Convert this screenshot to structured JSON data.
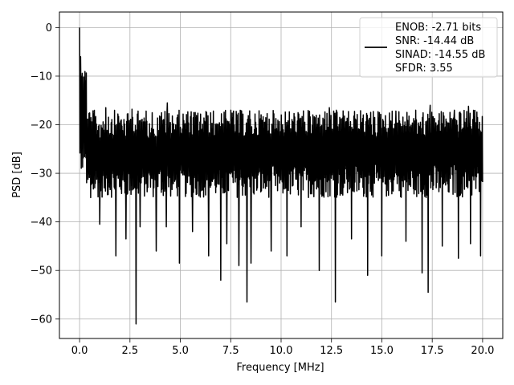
{
  "chart_data": {
    "type": "line",
    "xlabel": "Frequency [MHz]",
    "ylabel": "PSD [dB]",
    "xlim": [
      -1.0,
      21.0
    ],
    "ylim": [
      -64.0,
      3.2
    ],
    "x_ticks": [
      0.0,
      2.5,
      5.0,
      7.5,
      10.0,
      12.5,
      15.0,
      17.5,
      20.0
    ],
    "x_tick_labels": [
      "0.0",
      "2.5",
      "5.0",
      "7.5",
      "10.0",
      "12.5",
      "15.0",
      "17.5",
      "20.0"
    ],
    "y_ticks": [
      0,
      -10,
      -20,
      -30,
      -40,
      -50,
      -60
    ],
    "y_tick_labels": [
      "0",
      "−10",
      "−20",
      "−30",
      "−40",
      "−50",
      "−60"
    ],
    "grid": true,
    "legend_position": "top-right",
    "legend_entries": [
      "ENOB: -2.71 bits",
      "SNR: -14.44 dB",
      "SINAD: -14.55 dB",
      "SFDR: 3.55"
    ],
    "series": [
      {
        "color": "#000000",
        "x_start": 0.0,
        "x_end": 20.0,
        "points": 1200,
        "initial_peak_db": 0.0,
        "band_high_db": -17.0,
        "band_low_db": -35.0,
        "deep_dips": [
          {
            "x": 0.55,
            "y": -35.0
          },
          {
            "x": 1.0,
            "y": -40.5
          },
          {
            "x": 1.8,
            "y": -47.0
          },
          {
            "x": 2.3,
            "y": -43.5
          },
          {
            "x": 2.8,
            "y": -61.0
          },
          {
            "x": 3.0,
            "y": -41.0
          },
          {
            "x": 3.8,
            "y": -46.0
          },
          {
            "x": 4.3,
            "y": -41.0
          },
          {
            "x": 4.95,
            "y": -48.5
          },
          {
            "x": 5.6,
            "y": -42.0
          },
          {
            "x": 6.4,
            "y": -47.0
          },
          {
            "x": 7.0,
            "y": -52.0
          },
          {
            "x": 7.3,
            "y": -44.5
          },
          {
            "x": 7.9,
            "y": -49.0
          },
          {
            "x": 8.3,
            "y": -56.5
          },
          {
            "x": 8.5,
            "y": -48.5
          },
          {
            "x": 9.5,
            "y": -46.0
          },
          {
            "x": 10.3,
            "y": -47.0
          },
          {
            "x": 11.0,
            "y": -41.0
          },
          {
            "x": 11.9,
            "y": -50.0
          },
          {
            "x": 12.7,
            "y": -56.5
          },
          {
            "x": 13.5,
            "y": -43.5
          },
          {
            "x": 14.3,
            "y": -51.0
          },
          {
            "x": 15.0,
            "y": -47.0
          },
          {
            "x": 15.7,
            "y": -46.5
          },
          {
            "x": 16.2,
            "y": -44.0
          },
          {
            "x": 17.0,
            "y": -50.5
          },
          {
            "x": 17.3,
            "y": -54.5
          },
          {
            "x": 18.0,
            "y": -45.0
          },
          {
            "x": 18.8,
            "y": -47.5
          },
          {
            "x": 19.4,
            "y": -44.5
          },
          {
            "x": 19.9,
            "y": -47.0
          }
        ],
        "high_peaks": [
          {
            "x": 0.05,
            "y": -6.0
          },
          {
            "x": 0.12,
            "y": -11.0
          },
          {
            "x": 0.22,
            "y": -15.0
          },
          {
            "x": 1.3,
            "y": -16.5
          },
          {
            "x": 2.6,
            "y": -16.8
          },
          {
            "x": 4.35,
            "y": -15.5
          },
          {
            "x": 7.5,
            "y": -17.0
          },
          {
            "x": 12.4,
            "y": -16.5
          },
          {
            "x": 15.7,
            "y": -17.2
          },
          {
            "x": 17.4,
            "y": -16.0
          },
          {
            "x": 18.6,
            "y": -17.0
          },
          {
            "x": 19.3,
            "y": -16.2
          }
        ]
      }
    ]
  }
}
